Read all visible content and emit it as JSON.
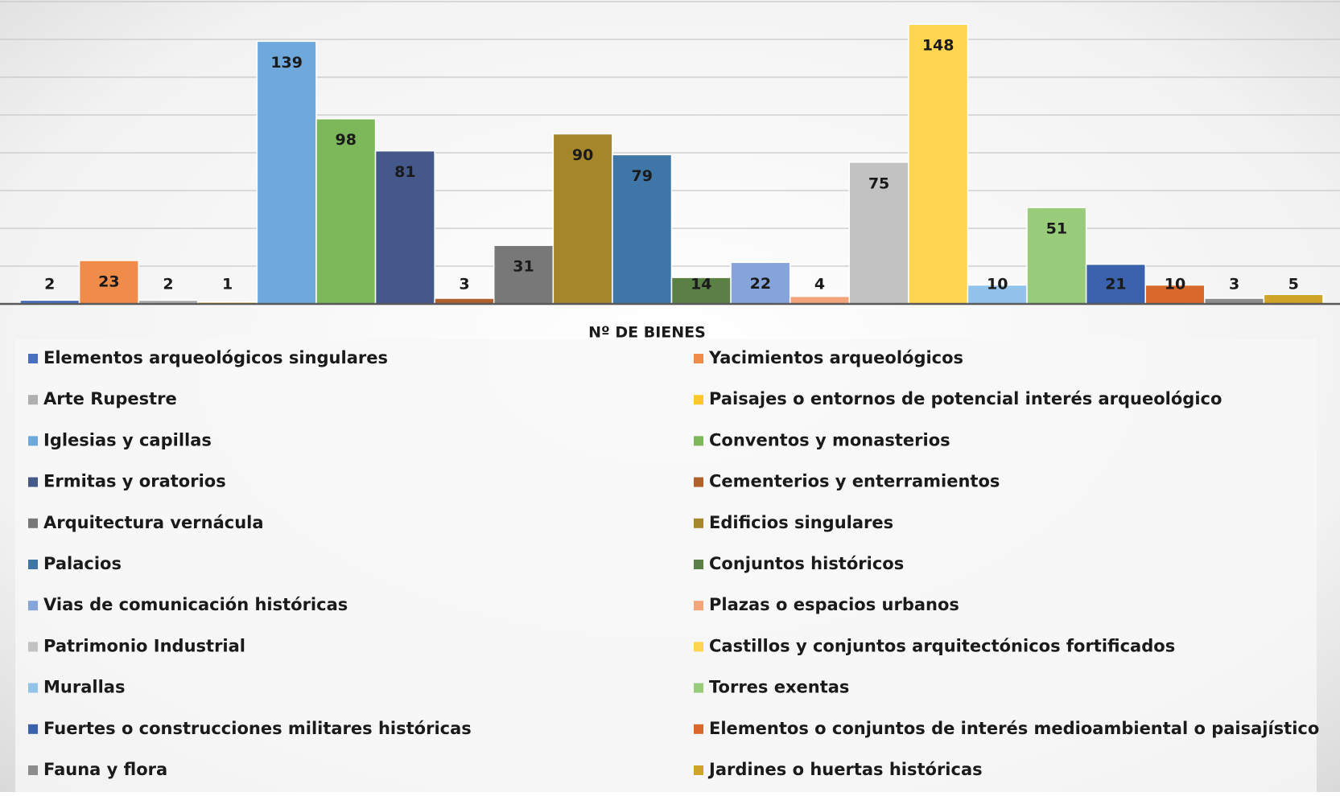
{
  "chart_data": {
    "type": "bar",
    "categories": [
      "Nº DE BIENES"
    ],
    "ylim": [
      0,
      160
    ],
    "yticks": [
      0,
      20,
      40,
      60,
      80,
      100,
      120,
      140,
      160
    ],
    "grid": true,
    "legend": "bottom",
    "series": [
      {
        "name": "Elementos arqueológicos singulares",
        "color": "#4a6fbf",
        "values": [
          2
        ]
      },
      {
        "name": "Yacimientos arqueológicos",
        "color": "#ef8c4a",
        "values": [
          23
        ]
      },
      {
        "name": "Arte Rupestre",
        "color": "#b0b0b0",
        "values": [
          2
        ]
      },
      {
        "name": "Paisajes o entornos de potencial interés arqueológico",
        "color": "#ffc72c",
        "values": [
          1
        ]
      },
      {
        "name": "Iglesias y capillas",
        "color": "#6fa8dc",
        "values": [
          139
        ]
      },
      {
        "name": "Conventos y monasterios",
        "color": "#7cb85a",
        "values": [
          98
        ]
      },
      {
        "name": "Ermitas y oratorios",
        "color": "#44598a",
        "values": [
          81
        ]
      },
      {
        "name": "Cementerios y enterramientos",
        "color": "#b0602a",
        "values": [
          3
        ]
      },
      {
        "name": "Arquitectura vernácula",
        "color": "#787878",
        "values": [
          31
        ]
      },
      {
        "name": "Edificios singulares",
        "color": "#a6862a",
        "values": [
          90
        ]
      },
      {
        "name": "Palacios",
        "color": "#3f76a8",
        "values": [
          79
        ]
      },
      {
        "name": "Conjuntos históricos",
        "color": "#5a8045",
        "values": [
          14
        ]
      },
      {
        "name": "Vias de comunicación históricas",
        "color": "#86a4dc",
        "values": [
          22
        ]
      },
      {
        "name": "Plazas o espacios urbanos",
        "color": "#f4a57a",
        "values": [
          4
        ]
      },
      {
        "name": "Patrimonio Industrial",
        "color": "#c2c2c2",
        "values": [
          75
        ]
      },
      {
        "name": "Castillos y conjuntos arquitectónicos fortificados",
        "color": "#ffd54f",
        "values": [
          148
        ]
      },
      {
        "name": "Murallas",
        "color": "#93c3ea",
        "values": [
          10
        ]
      },
      {
        "name": "Torres exentas",
        "color": "#98cc7a",
        "values": [
          51
        ]
      },
      {
        "name": "Fuertes o construcciones militares históricas",
        "color": "#3a62ad",
        "values": [
          21
        ]
      },
      {
        "name": "Elementos o conjuntos de interés medioambiental o paisajístico",
        "color": "#d9692a",
        "values": [
          10
        ]
      },
      {
        "name": "Fauna y flora",
        "color": "#8c8c8c",
        "values": [
          3
        ]
      },
      {
        "name": "Jardines o huertas históricas",
        "color": "#cfa428",
        "values": [
          5
        ]
      }
    ]
  }
}
